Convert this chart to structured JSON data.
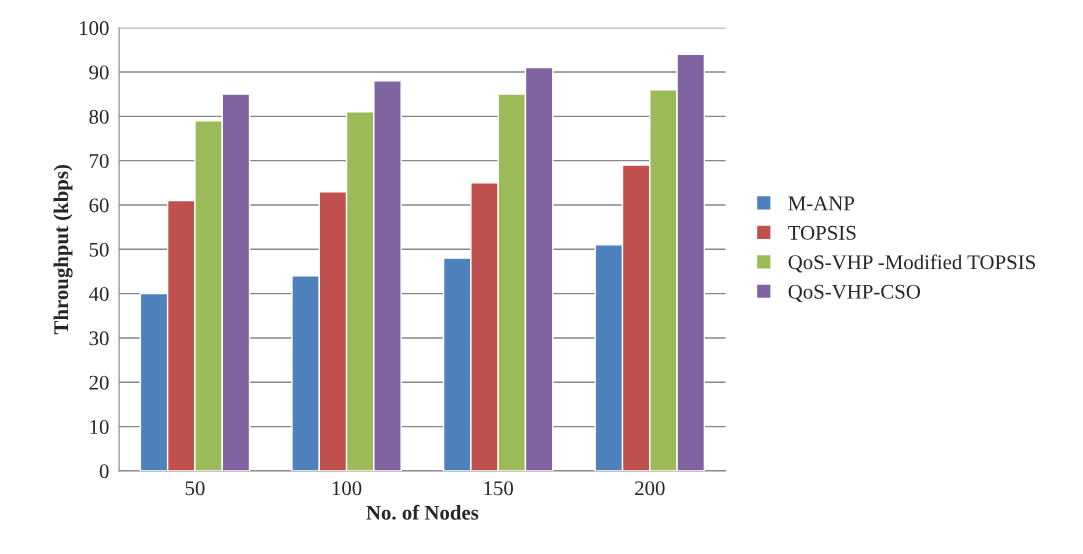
{
  "chart_data": {
    "type": "bar",
    "xlabel": "No. of Nodes",
    "ylabel": "Throughput (kbps)",
    "categories": [
      "50",
      "100",
      "150",
      "200"
    ],
    "series": [
      {
        "name": "M-ANP",
        "color": "#4f81bd",
        "values": [
          40,
          44,
          48,
          51
        ]
      },
      {
        "name": "TOPSIS",
        "color": "#c0504d",
        "values": [
          61,
          63,
          65,
          69
        ]
      },
      {
        "name": "QoS-VHP -Modified TOPSIS",
        "color": "#9bbb59",
        "values": [
          79,
          81,
          85,
          86
        ]
      },
      {
        "name": "QoS-VHP-CSO",
        "color": "#8064a2",
        "values": [
          85,
          88,
          91,
          94
        ]
      }
    ],
    "ylim": [
      0,
      100
    ],
    "yticks": [
      0,
      10,
      20,
      30,
      40,
      50,
      60,
      70,
      80,
      90,
      100
    ],
    "grid": "y",
    "legend": "right"
  }
}
